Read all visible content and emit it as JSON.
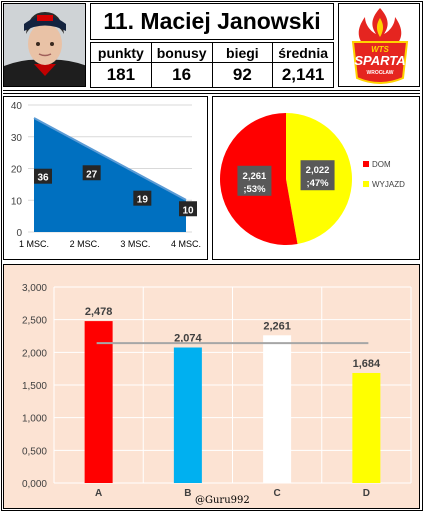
{
  "header": {
    "title": "11. Maciej Janowski",
    "stats": [
      {
        "label": "punkty",
        "value": "181"
      },
      {
        "label": "bonusy",
        "value": "16"
      },
      {
        "label": "biegi",
        "value": "92"
      },
      {
        "label": "średnia",
        "value": "2,141"
      }
    ],
    "logo": {
      "top": "WTS",
      "main": "SPARTA",
      "sub": "WROCŁAW"
    }
  },
  "credit": "@Guru992",
  "colors": {
    "area": "#0070c0",
    "area_line": "#5b9bd5",
    "dom": "#ff0000",
    "wyjazd": "#ffff00",
    "bar_a": "#ff0000",
    "bar_b": "#00b0f0",
    "bar_c": "#ffffff",
    "bar_d": "#ffff00",
    "avg_line": "#a6a6a6",
    "bar_bg": "#fce3d3"
  },
  "chart_data": [
    {
      "type": "area",
      "categories": [
        "1 MSC.",
        "2 MSC.",
        "3 MSC.",
        "4 MSC."
      ],
      "values": [
        36,
        27,
        19,
        10
      ],
      "data_labels": [
        "36",
        "27",
        "19",
        "10"
      ],
      "y_ticks": [
        "0",
        "10",
        "20",
        "30",
        "40"
      ],
      "ylim": [
        0,
        40
      ],
      "grid": true,
      "trendline": true
    },
    {
      "type": "pie",
      "slices": [
        {
          "name": "DOM",
          "value": 2.261,
          "label": "2,261\n;53%"
        },
        {
          "name": "WYJAZD",
          "value": 2.022,
          "label": "2,022\n;47%"
        }
      ],
      "legend": "right"
    },
    {
      "type": "bar",
      "categories": [
        "A",
        "B",
        "C",
        "D"
      ],
      "values": [
        2.478,
        2.074,
        2.261,
        1.684
      ],
      "data_labels": [
        "2,478",
        "2,074",
        "2,261",
        "1,684"
      ],
      "y_ticks": [
        "0,000",
        "0,500",
        "1,000",
        "1,500",
        "2,000",
        "2,500",
        "3,000"
      ],
      "ylim": [
        0,
        3
      ],
      "reference_line": 2.141,
      "grid": true
    }
  ]
}
